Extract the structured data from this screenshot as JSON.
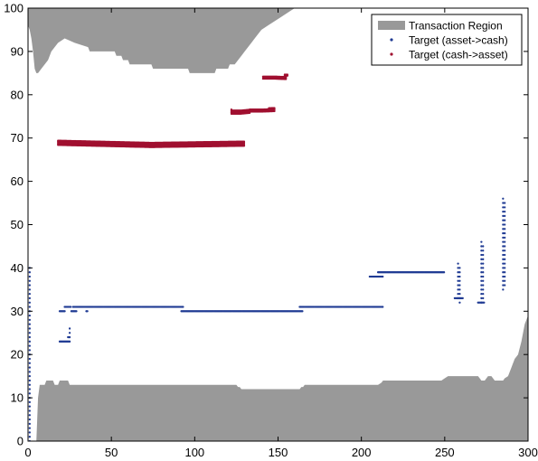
{
  "chart_data": {
    "type": "scatter",
    "xlim": [
      0,
      300
    ],
    "ylim": [
      0,
      100
    ],
    "x_ticks": [
      0,
      50,
      100,
      150,
      200,
      250,
      300
    ],
    "y_ticks": [
      0,
      10,
      20,
      30,
      40,
      50,
      60,
      70,
      80,
      90,
      100
    ],
    "grid": false,
    "legend_position": "top-right",
    "colors": {
      "region": "#999999",
      "asset_to_cash": "#1f3a93",
      "cash_to_asset": "#a01030"
    },
    "legend": [
      {
        "label": "Transaction Region",
        "kind": "patch",
        "color_key": "region"
      },
      {
        "label": "Target (asset->cash)",
        "kind": "marker",
        "color_key": "asset_to_cash"
      },
      {
        "label": "Target (cash->asset)",
        "kind": "marker",
        "color_key": "cash_to_asset"
      }
    ],
    "region_top": {
      "x": [
        0,
        1,
        2,
        3,
        4,
        5,
        6,
        8,
        10,
        12,
        14,
        16,
        18,
        22,
        28,
        36,
        37,
        52,
        53,
        56,
        57,
        60,
        61,
        74,
        75,
        96,
        97,
        112,
        113,
        120,
        121,
        124,
        126,
        128,
        130,
        132,
        134,
        136,
        138,
        140,
        144,
        148,
        152,
        156,
        160,
        166,
        170,
        176,
        184,
        192,
        200,
        208,
        216,
        224,
        232,
        240
      ],
      "y": [
        96,
        95,
        93,
        90,
        86,
        85,
        85,
        86,
        87,
        88,
        90,
        91,
        92,
        93,
        92,
        91,
        90,
        90,
        89,
        89,
        88,
        88,
        87,
        87,
        86,
        86,
        85,
        85,
        86,
        86,
        87,
        87,
        88,
        89,
        90,
        91,
        92,
        93,
        94,
        95,
        96,
        97,
        98,
        99,
        100,
        100,
        100,
        100,
        100,
        100,
        100,
        100,
        100,
        100,
        100,
        100
      ]
    },
    "region_bottom": {
      "x": [
        0,
        5,
        6,
        7,
        10,
        11,
        15,
        16,
        18,
        19,
        24,
        25,
        26,
        27,
        125,
        126,
        127,
        128,
        129,
        130,
        131,
        132,
        133,
        163,
        164,
        165,
        166,
        167,
        175,
        210,
        212,
        213,
        214,
        215,
        216,
        217,
        218,
        219,
        220,
        221,
        222,
        224,
        226,
        228,
        230,
        232,
        234,
        236,
        238,
        240,
        242,
        244,
        246,
        248,
        250,
        252,
        254,
        256,
        258,
        260,
        262,
        264,
        266,
        268,
        270,
        271,
        272,
        274,
        276,
        278,
        280,
        282,
        284,
        285,
        286,
        288,
        290,
        291,
        292,
        294,
        296,
        298,
        300
      ],
      "y": [
        0,
        0,
        10,
        13,
        13,
        14,
        14,
        13,
        13,
        14,
        14,
        13,
        13,
        13,
        13,
        12.5,
        12.5,
        12,
        12,
        12,
        12,
        12,
        12,
        12,
        12.5,
        12.5,
        13,
        13,
        13,
        13,
        13.5,
        14,
        14,
        14,
        14,
        14,
        14,
        14,
        14,
        14,
        14,
        14,
        14,
        14,
        14,
        14,
        14,
        14,
        14,
        14,
        14,
        14,
        14,
        14,
        14.5,
        15,
        15,
        15,
        15,
        15,
        15,
        15,
        15,
        15,
        15,
        14.5,
        14,
        14,
        15,
        15,
        14,
        14,
        14,
        14,
        14.5,
        15,
        17,
        18,
        19,
        20,
        23,
        27,
        29
      ]
    },
    "series": [
      {
        "name": "Target (asset->cash)",
        "color_key": "asset_to_cash",
        "segments": [
          {
            "x": [
              1,
              1
            ],
            "y": [
              0,
              40
            ],
            "step_y": 1,
            "note_kind": "vertical"
          },
          {
            "x": [
              19,
              22
            ],
            "y": [
              30,
              30
            ]
          },
          {
            "x": [
              19,
              25
            ],
            "y": [
              23,
              23
            ]
          },
          {
            "x": [
              24,
              25
            ],
            "y": [
              24,
              26
            ],
            "step_y": 1
          },
          {
            "x": [
              22,
              26
            ],
            "y": [
              31,
              31
            ]
          },
          {
            "x": [
              26,
              29
            ],
            "y": [
              30,
              30
            ]
          },
          {
            "x": [
              35,
              36
            ],
            "y": [
              30,
              30
            ]
          },
          {
            "x": [
              27,
              93
            ],
            "y": [
              31,
              31
            ]
          },
          {
            "x": [
              92,
              165
            ],
            "y": [
              30,
              30
            ]
          },
          {
            "x": [
              163,
              213
            ],
            "y": [
              31,
              31
            ]
          },
          {
            "x": [
              205,
              213
            ],
            "y": [
              38,
              38
            ]
          },
          {
            "x": [
              210,
              250
            ],
            "y": [
              39,
              39
            ]
          },
          {
            "x": [
              256,
              261
            ],
            "y": [
              33,
              33
            ]
          },
          {
            "x": [
              258,
              258
            ],
            "y": [
              33,
              41
            ],
            "step_y": 1
          },
          {
            "x": [
              259,
              259
            ],
            "y": [
              32,
              40
            ],
            "step_y": 1
          },
          {
            "x": [
              270,
              274
            ],
            "y": [
              32,
              32
            ]
          },
          {
            "x": [
              272,
              272
            ],
            "y": [
              32,
              46
            ],
            "step_y": 1
          },
          {
            "x": [
              273,
              273
            ],
            "y": [
              33,
              45
            ],
            "step_y": 1
          },
          {
            "x": [
              285,
              285
            ],
            "y": [
              35,
              56
            ],
            "step_y": 1
          },
          {
            "x": [
              286,
              286
            ],
            "y": [
              36,
              55
            ],
            "step_y": 1
          }
        ]
      },
      {
        "name": "Target (cash->asset)",
        "color_key": "cash_to_asset",
        "bands": [
          {
            "x0": 18,
            "x1": 130,
            "y_left": [
              68.4,
              69.4
            ],
            "y_mid": [
              67.9,
              68.9
            ],
            "y_right": [
              68.2,
              69.2
            ]
          },
          {
            "x0": 122,
            "x1": 133,
            "y_left": [
              75.6,
              76.6
            ],
            "y_mid": [
              75.6,
              76.4
            ],
            "y_right": [
              75.8,
              76.6
            ]
          },
          {
            "x0": 133,
            "x1": 148,
            "y_left": [
              76.1,
              76.8
            ],
            "y_mid": [
              76.1,
              76.8
            ],
            "y_right": [
              76.2,
              77.0
            ]
          },
          {
            "x0": 141,
            "x1": 155,
            "y_left": [
              83.7,
              84.2
            ],
            "y_mid": [
              83.7,
              84.2
            ],
            "y_right": [
              83.6,
              84.1
            ]
          },
          {
            "x0": 154,
            "x1": 156,
            "y_left": [
              84.4,
              84.8
            ],
            "y_mid": [
              84.4,
              84.8
            ],
            "y_right": [
              84.4,
              84.8
            ]
          }
        ]
      }
    ]
  }
}
